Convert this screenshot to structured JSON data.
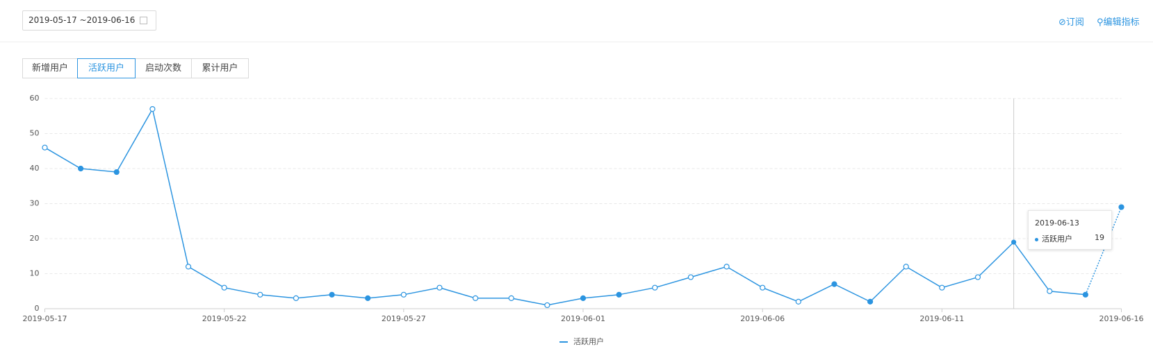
{
  "header": {
    "date_range": "2019-05-17 ~2019-06-16",
    "links": [
      "订阅",
      "编辑指标"
    ]
  },
  "tabs": {
    "items": [
      "新增用户",
      "活跃用户",
      "启动次数",
      "累计用户"
    ],
    "active": 1
  },
  "chart_data": {
    "type": "line",
    "x": [
      "2019-05-17",
      "2019-05-18",
      "2019-05-19",
      "2019-05-20",
      "2019-05-21",
      "2019-05-22",
      "2019-05-23",
      "2019-05-24",
      "2019-05-25",
      "2019-05-26",
      "2019-05-27",
      "2019-05-28",
      "2019-05-29",
      "2019-05-30",
      "2019-05-31",
      "2019-06-01",
      "2019-06-02",
      "2019-06-03",
      "2019-06-04",
      "2019-06-05",
      "2019-06-06",
      "2019-06-07",
      "2019-06-08",
      "2019-06-09",
      "2019-06-10",
      "2019-06-11",
      "2019-06-12",
      "2019-06-13",
      "2019-06-14",
      "2019-06-15",
      "2019-06-16"
    ],
    "xticks": [
      "2019-05-17",
      "2019-05-22",
      "2019-05-27",
      "2019-06-01",
      "2019-06-06",
      "2019-06-11",
      "2019-06-16"
    ],
    "series": [
      {
        "name": "活跃用户",
        "color": "#2b94e0",
        "values": [
          46,
          40,
          39,
          57,
          12,
          6,
          4,
          3,
          4,
          3,
          4,
          6,
          3,
          3,
          1,
          3,
          4,
          6,
          9,
          12,
          6,
          2,
          7,
          2,
          12,
          6,
          9,
          19,
          5,
          4,
          29
        ]
      }
    ],
    "ylim": [
      0,
      60
    ],
    "yticks": [
      0,
      10,
      20,
      30,
      40,
      50,
      60
    ],
    "grid": true,
    "dotted_last_segment": true,
    "tooltip": {
      "date": "2019-06-13",
      "series": "活跃用户",
      "value": "19"
    }
  }
}
